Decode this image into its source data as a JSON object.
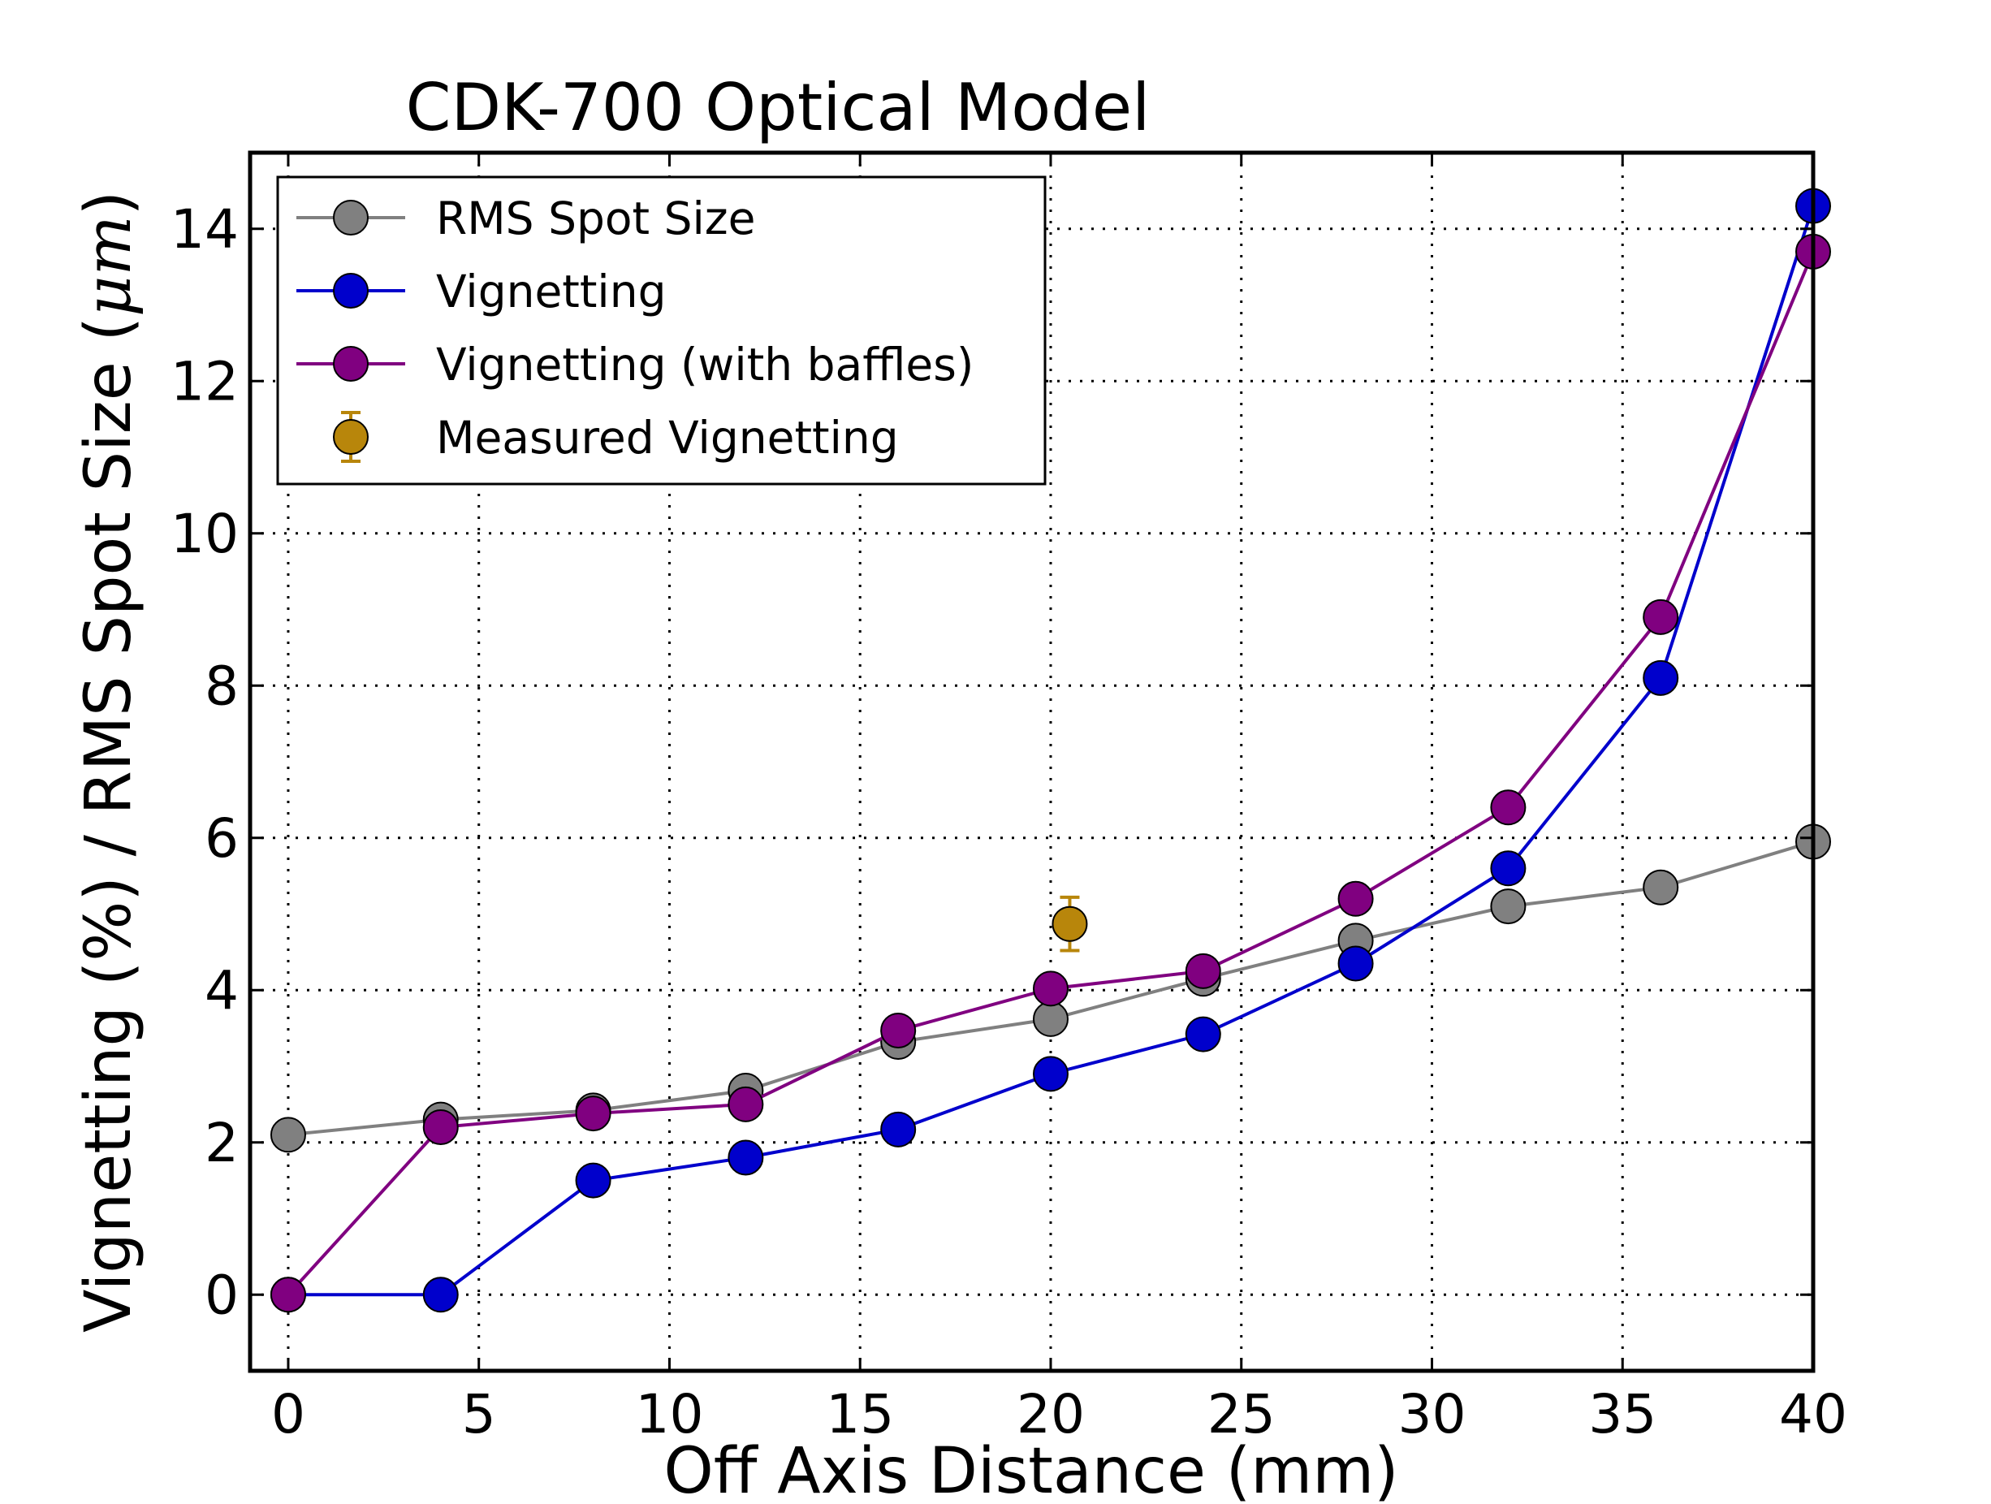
{
  "chart_data": {
    "type": "line",
    "title": "CDK-700 Optical Model",
    "xlabel": "Off Axis Distance (mm)",
    "ylabel": "Vignetting (%) / RMS Spot Size (",
    "ylabel_unit": "μm",
    "ylabel_close": ")",
    "xlim": [
      -1,
      40
    ],
    "ylim": [
      -1,
      15
    ],
    "xticks": [
      0,
      5,
      10,
      15,
      20,
      25,
      30,
      35,
      40
    ],
    "yticks": [
      0,
      2,
      4,
      6,
      8,
      10,
      12,
      14
    ],
    "xtick_labels": [
      "0",
      "5",
      "10",
      "15",
      "20",
      "25",
      "30",
      "35",
      "40"
    ],
    "ytick_labels": [
      "0",
      "2",
      "4",
      "6",
      "8",
      "10",
      "12",
      "14"
    ],
    "grid": true,
    "legend_position": "top-left",
    "series": [
      {
        "name": "RMS Spot Size",
        "color": "#808080",
        "x": [
          0,
          4,
          8,
          12,
          16,
          20,
          24,
          28,
          32,
          36,
          40
        ],
        "y": [
          2.1,
          2.3,
          2.42,
          2.68,
          3.32,
          3.62,
          4.15,
          4.65,
          5.1,
          5.35,
          5.95
        ]
      },
      {
        "name": "Vignetting",
        "color": "#0000cc",
        "x": [
          0,
          4,
          8,
          12,
          16,
          20,
          24,
          28,
          32,
          36,
          40
        ],
        "y": [
          0,
          0,
          1.5,
          1.8,
          2.17,
          2.9,
          3.42,
          4.35,
          5.6,
          8.1,
          14.3
        ]
      },
      {
        "name": "Vignetting (with baffles)",
        "color": "#800080",
        "x": [
          0,
          4,
          8,
          12,
          16,
          20,
          24,
          28,
          32,
          36,
          40
        ],
        "y": [
          0,
          2.2,
          2.38,
          2.5,
          3.47,
          4.02,
          4.25,
          5.2,
          6.4,
          8.9,
          13.7
        ]
      },
      {
        "name": "Measured Vignetting",
        "color": "#b8860b",
        "errorbar": true,
        "x": [
          20.5
        ],
        "y": [
          4.87
        ],
        "yerr": [
          0.35
        ]
      }
    ]
  }
}
